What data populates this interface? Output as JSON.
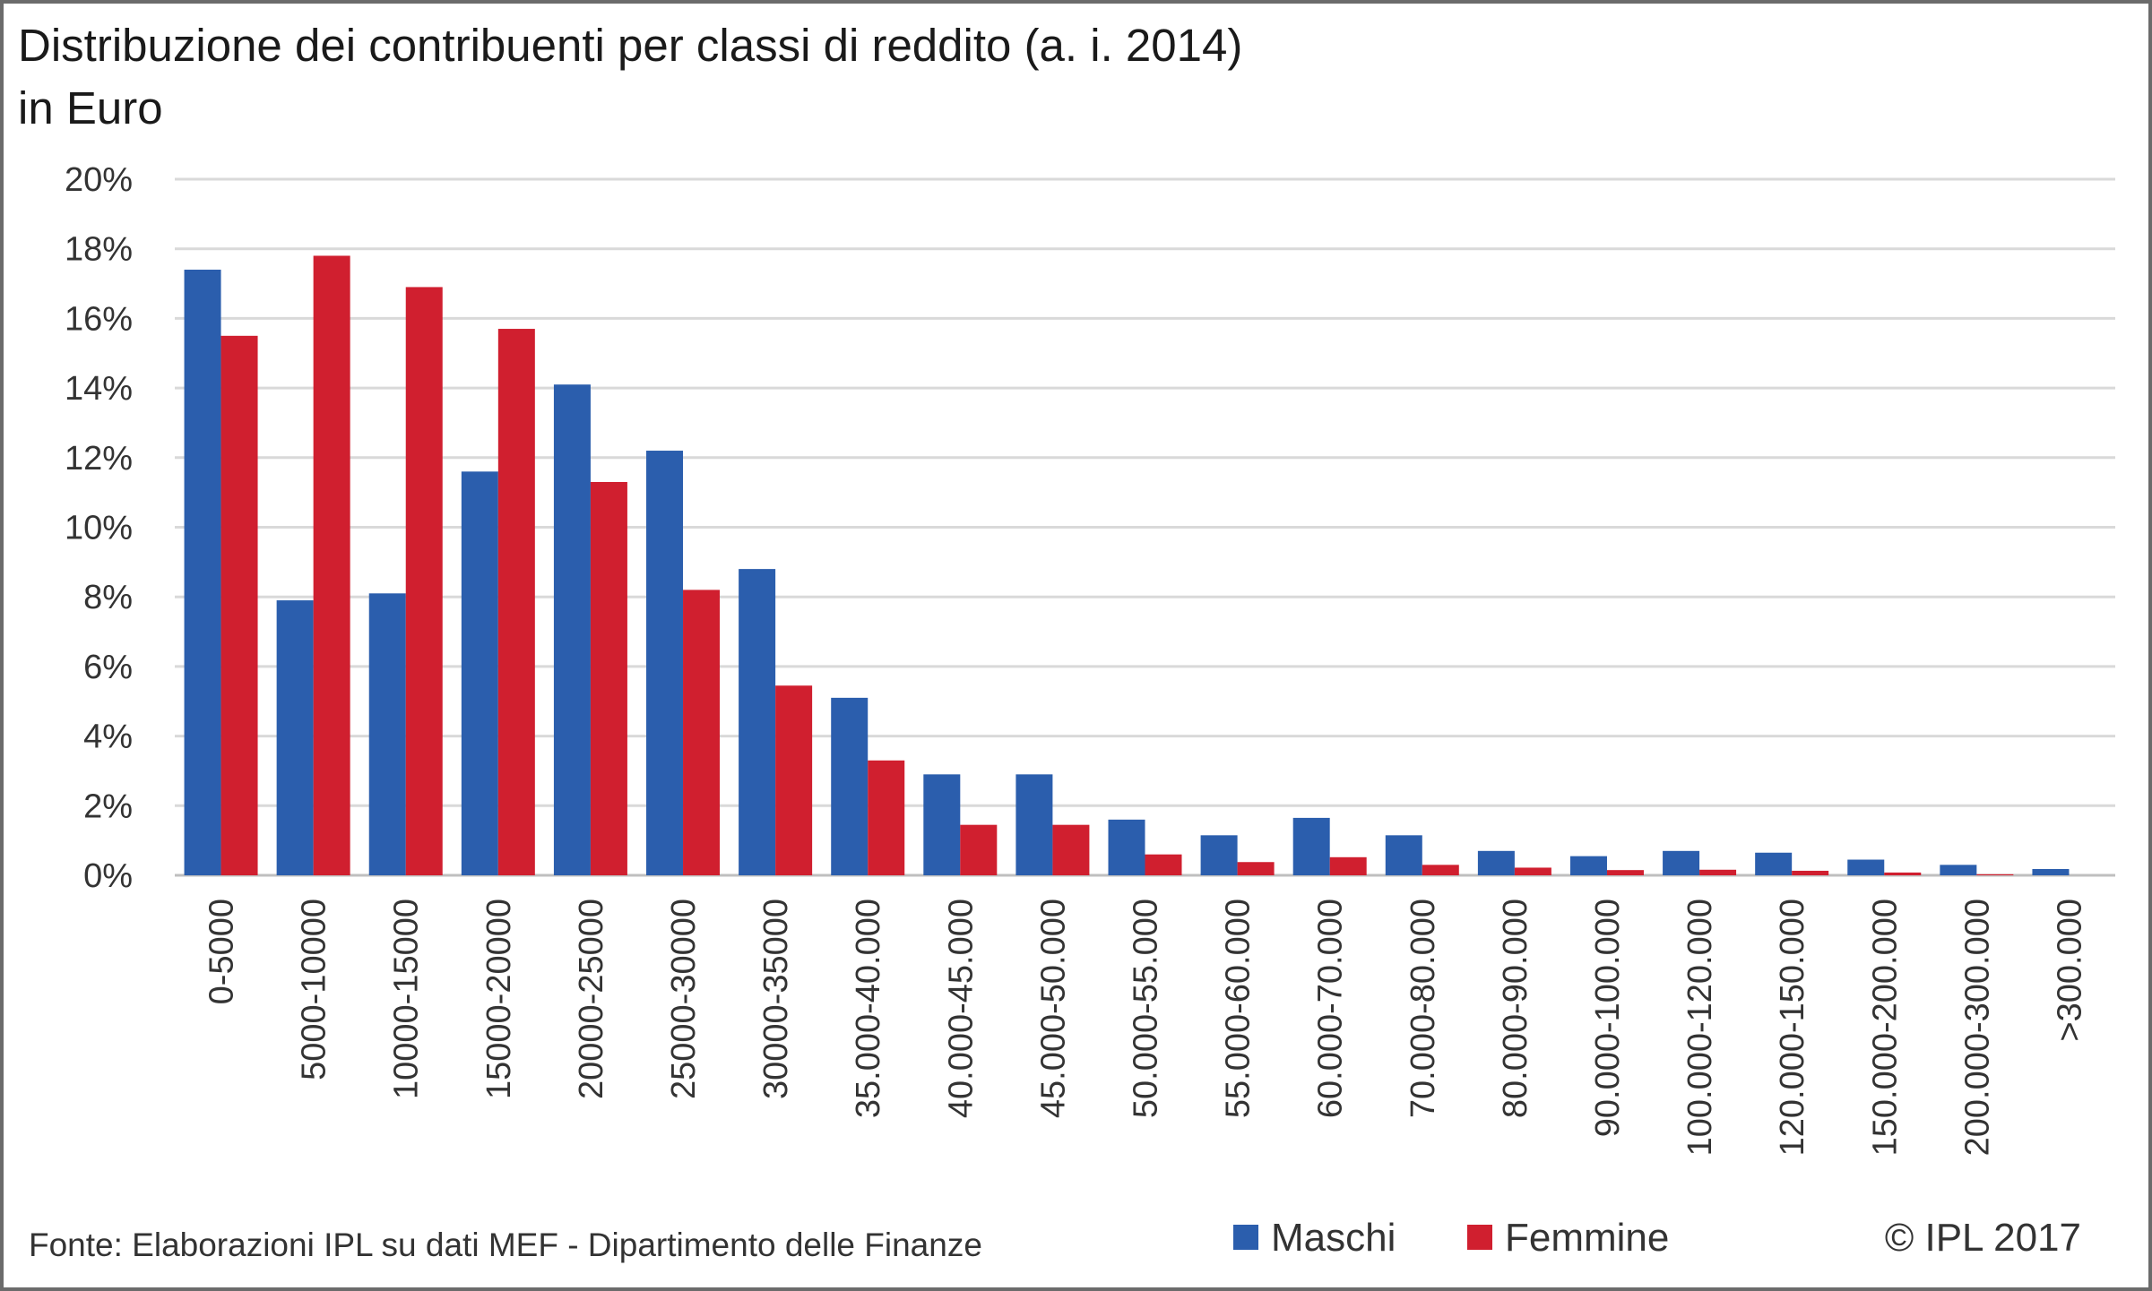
{
  "title_line1": "Distribuzione dei contribuenti per classi di reddito (a. i. 2014)",
  "title_line2": "in Euro",
  "source": "Fonte: Elaborazioni IPL su dati MEF - Dipartimento delle Finanze",
  "copyright": "© IPL 2017",
  "colors": {
    "maschi": "#2b5ead",
    "femmine": "#d01f2f"
  },
  "chart_data": {
    "type": "bar",
    "categories": [
      "0-5000",
      "5000-10000",
      "10000-15000",
      "15000-20000",
      "20000-25000",
      "25000-30000",
      "30000-35000",
      "35.000-40.000",
      "40.000-45.000",
      "45.000-50.000",
      "50.000-55.000",
      "55.000-60.000",
      "60.000-70.000",
      "70.000-80.000",
      "80.000-90.000",
      "90.000-100.000",
      "100.000-120.000",
      "120.000-150.000",
      "150.000-200.000",
      "200.000-300.000",
      ">300.000"
    ],
    "series": [
      {
        "name": "Maschi",
        "color": "#2b5ead",
        "values": [
          17.4,
          7.9,
          8.1,
          11.6,
          14.1,
          12.2,
          8.8,
          5.1,
          2.9,
          2.9,
          1.6,
          1.15,
          1.65,
          1.15,
          0.7,
          0.55,
          0.7,
          0.65,
          0.45,
          0.3,
          0.18
        ]
      },
      {
        "name": "Femmine",
        "color": "#d01f2f",
        "values": [
          15.5,
          17.8,
          16.9,
          15.7,
          11.3,
          8.2,
          5.45,
          3.3,
          1.45,
          1.45,
          0.6,
          0.38,
          0.52,
          0.3,
          0.22,
          0.15,
          0.16,
          0.13,
          0.08,
          0.03,
          0.0
        ]
      }
    ],
    "y_ticks": [
      "0%",
      "2%",
      "4%",
      "6%",
      "8%",
      "10%",
      "12%",
      "14%",
      "16%",
      "18%",
      "20%"
    ],
    "ylim": [
      0,
      20
    ],
    "y_unit": "%",
    "grid": true,
    "legend": "bottom",
    "xlabel": "",
    "ylabel": ""
  }
}
